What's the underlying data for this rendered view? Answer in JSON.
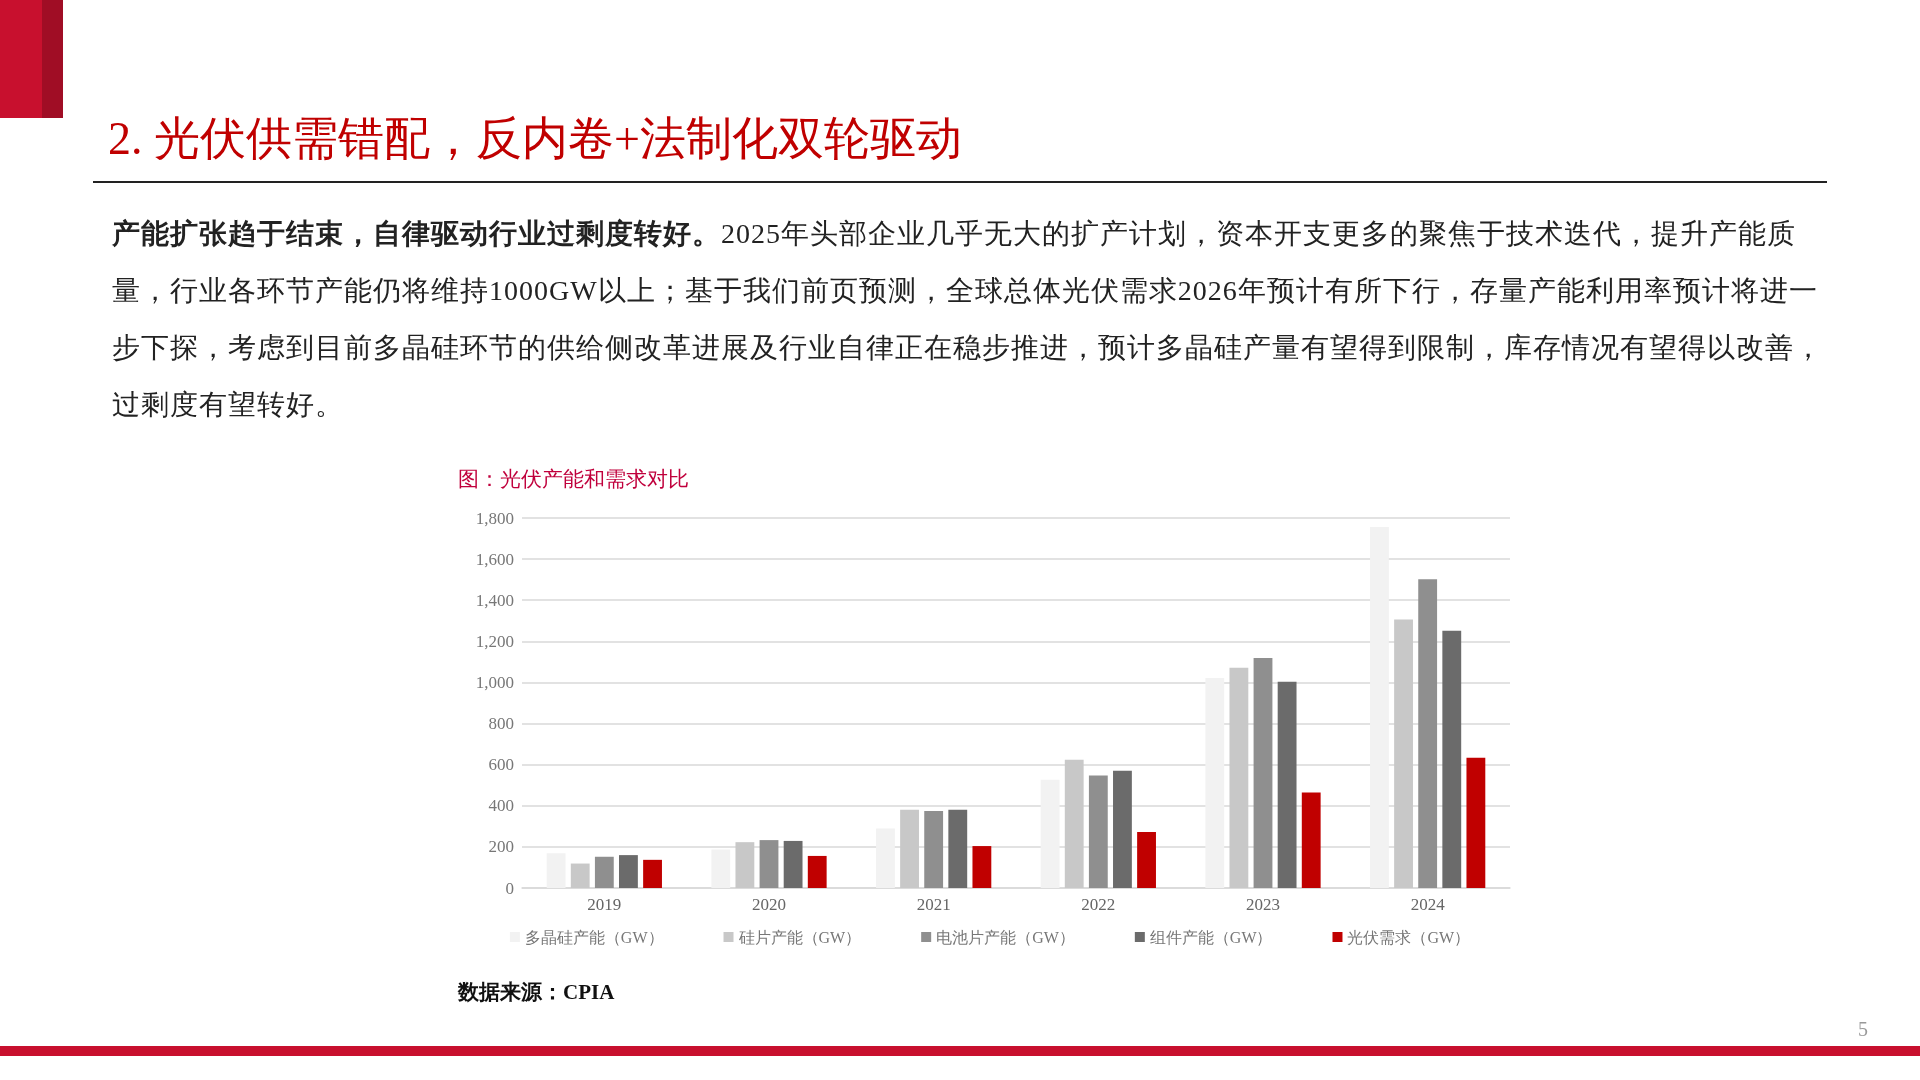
{
  "chart_data": {
    "type": "bar",
    "title": "2. 光伏供需错配，反内卷+法制化双轮驱动",
    "subtitle": "图：光伏产能和需求对比",
    "annotations": [
      "产能扩张趋于结束，自律驱动行业过剩度转好。",
      "2025年头部企业几乎无大的扩产计划，资本开支更多的聚焦于技术迭代，提升产能质量，行业各环节产能仍将维持1000GW以上；基于我们前页预测，全球总体光伏需求2026年预计有所下行，存量产能利用率预计将进一步下探，考虑到目前多晶硅环节的供给侧改革进展及行业自律正在稳步推进，预计多晶硅产量有望得到限制，库存情况有望得以改善，过剩度有望转好。",
      "数据来源：CPIA",
      "5"
    ],
    "categories": [
      "2019",
      "2020",
      "2021",
      "2022",
      "2023",
      "2024"
    ],
    "series": [
      {
        "name": "多晶硅产能（GW）",
        "color": "#f2f2f2",
        "values": [
          169,
          187,
          290,
          527,
          1022,
          1756
        ]
      },
      {
        "name": "硅片产能（GW）",
        "color": "#c8c8c8",
        "values": [
          119,
          223,
          381,
          624,
          1072,
          1306
        ]
      },
      {
        "name": "电池片产能（GW）",
        "color": "#8f8f8f",
        "values": [
          152,
          233,
          375,
          547,
          1119,
          1502
        ]
      },
      {
        "name": "组件产能（GW）",
        "color": "#6b6b6b",
        "values": [
          160,
          229,
          381,
          570,
          1003,
          1251
        ]
      },
      {
        "name": "光伏需求（GW）",
        "color": "#c00000",
        "values": [
          137,
          156,
          204,
          273,
          465,
          634
        ]
      }
    ],
    "ylim": [
      0,
      1800
    ],
    "yticks": [
      0,
      200,
      400,
      600,
      800,
      {
        "value": 1000,
        "label": "1,000"
      },
      {
        "value": 1200,
        "label": "1,200"
      },
      {
        "value": 1400,
        "label": "1,400"
      },
      {
        "value": 1600,
        "label": "1,600"
      },
      {
        "value": 1800,
        "label": "1,800"
      }
    ],
    "grid": "y",
    "legend": "bottom"
  }
}
